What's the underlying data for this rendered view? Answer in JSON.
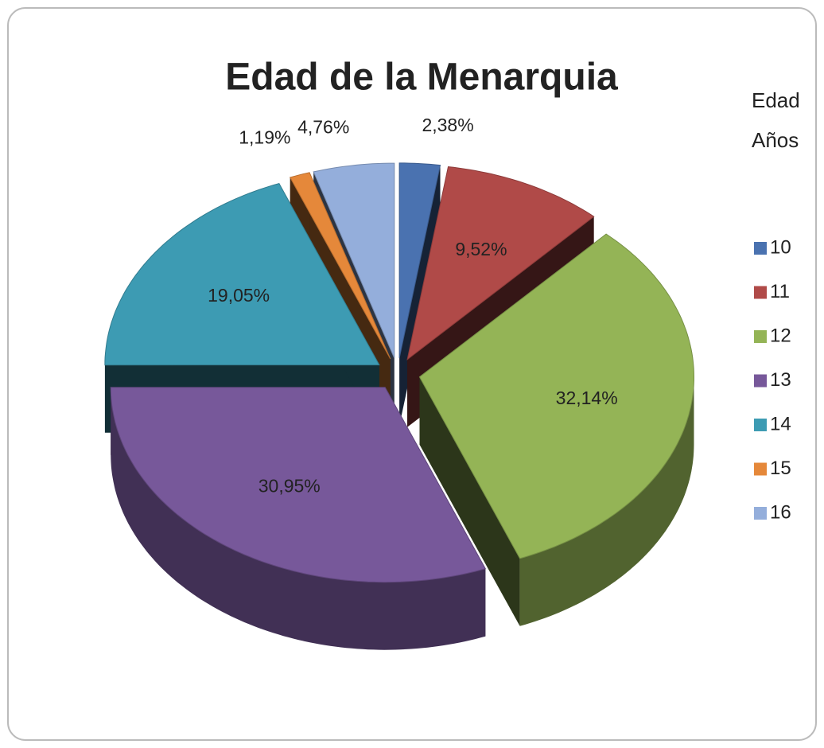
{
  "chart_data": {
    "type": "pie",
    "title": "Edad de la Menarquia",
    "legend_title": [
      "Edad",
      "Años"
    ],
    "categories": [
      "10",
      "11",
      "12",
      "13",
      "14",
      "15",
      "16"
    ],
    "values": [
      2.38,
      9.52,
      32.14,
      30.95,
      19.05,
      1.19,
      4.76
    ],
    "value_labels": [
      "2,38%",
      "9,52%",
      "32,14%",
      "30,95%",
      "19,05%",
      "1,19%",
      "4,76%"
    ],
    "colors": [
      "#4a72b0",
      "#b04a48",
      "#94b456",
      "#77589a",
      "#3d9bb3",
      "#e5883a",
      "#94aedb"
    ],
    "legend": "right"
  }
}
